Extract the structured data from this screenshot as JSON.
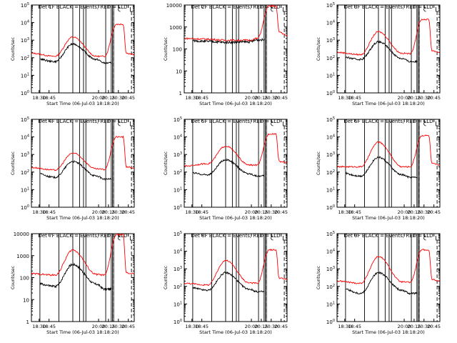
{
  "colors": {
    "events": "#000000",
    "lld": "#ff0000",
    "frame": "#000000",
    "background": "#ffffff"
  },
  "chart_data": [
    {
      "type": "line",
      "id": 1,
      "title": "Det 1F BLACK = Events, RED = LLD",
      "xlabel": "Start Time (06-Jul-03 18:18:20)",
      "ylabel": "Counts/sec",
      "yscale": "log",
      "ylim": [
        1,
        100000
      ],
      "yticks": [
        "10^0",
        "10^1",
        "10^2",
        "10^3",
        "10^4",
        "10^5"
      ],
      "xlim": [
        18.3056,
        20.9
      ],
      "xticks": [
        "18:30",
        "18:45",
        "20:00",
        "20:15",
        "20:30",
        "20:45"
      ],
      "red_profile": [
        180,
        120,
        1500,
        120,
        120,
        8000,
        8000,
        180,
        150
      ],
      "black_profile": [
        100,
        60,
        600,
        80,
        50,
        null,
        null,
        null,
        null
      ],
      "series": [
        {
          "name": "Events",
          "color": "#000000"
        },
        {
          "name": "LLD",
          "color": "#ff0000"
        }
      ]
    },
    {
      "type": "line",
      "id": 2,
      "title": "Det 2F BLACK = Events, RED = LLD",
      "xlabel": "Start Time (06-Jul-03 18:18:20)",
      "ylabel": "Counts/sec",
      "yscale": "log",
      "ylim": [
        1,
        10000
      ],
      "yticks": [
        "1",
        "10",
        "100",
        "1000",
        "10000"
      ],
      "xlim": [
        18.3056,
        20.9
      ],
      "xticks": [
        "18:30",
        "18:45",
        "20:00",
        "20:15",
        "20:30",
        "20:45"
      ],
      "red_profile": [
        300,
        280,
        250,
        250,
        300,
        9000,
        9000,
        600,
        400
      ],
      "black_profile": [
        250,
        220,
        200,
        210,
        260,
        null,
        null,
        null,
        null
      ],
      "series": [
        {
          "name": "Events",
          "color": "#000000"
        },
        {
          "name": "LLD",
          "color": "#ff0000"
        }
      ]
    },
    {
      "type": "line",
      "id": 3,
      "title": "Det 3F BLACK = Events, RED = LLD",
      "xlabel": "Start Time (06-Jul-03 18:18:20)",
      "ylabel": "Counts/sec",
      "yscale": "log",
      "ylim": [
        1,
        100000
      ],
      "yticks": [
        "10^0",
        "10^1",
        "10^2",
        "10^3",
        "10^4",
        "10^5"
      ],
      "xlim": [
        18.3056,
        20.9
      ],
      "xticks": [
        "18:30",
        "18:45",
        "20:00",
        "20:15",
        "20:30",
        "20:45"
      ],
      "red_profile": [
        200,
        150,
        3000,
        180,
        170,
        15000,
        15000,
        250,
        200
      ],
      "black_profile": [
        120,
        80,
        800,
        90,
        60,
        null,
        null,
        null,
        null
      ],
      "series": [
        {
          "name": "Events",
          "color": "#000000"
        },
        {
          "name": "LLD",
          "color": "#ff0000"
        }
      ]
    },
    {
      "type": "line",
      "id": 4,
      "title": "Det 4F BLACK = Events, RED = LLD",
      "xlabel": "Start Time (06-Jul-03 18:18:20)",
      "ylabel": "Counts/sec",
      "yscale": "log",
      "ylim": [
        1,
        100000
      ],
      "yticks": [
        "10^0",
        "10^1",
        "10^2",
        "10^3",
        "10^4",
        "10^5"
      ],
      "xlim": [
        18.3056,
        20.9
      ],
      "xticks": [
        "18:30",
        "18:45",
        "20:00",
        "20:15",
        "20:30",
        "20:45"
      ],
      "red_profile": [
        180,
        130,
        1200,
        150,
        140,
        10000,
        10000,
        200,
        170
      ],
      "black_profile": [
        100,
        50,
        400,
        60,
        40,
        null,
        null,
        null,
        null
      ],
      "series": [
        {
          "name": "Events",
          "color": "#000000"
        },
        {
          "name": "LLD",
          "color": "#ff0000"
        }
      ]
    },
    {
      "type": "line",
      "id": 5,
      "title": "Det 5F BLACK = Events, RED = LLD",
      "xlabel": "Start Time (06-Jul-03 18:18:20)",
      "ylabel": "Counts/sec",
      "yscale": "log",
      "ylim": [
        1,
        100000
      ],
      "yticks": [
        "10^0",
        "10^1",
        "10^2",
        "10^3",
        "10^4",
        "10^5"
      ],
      "xlim": [
        18.3056,
        20.9
      ],
      "xticks": [
        "18:30",
        "18:45",
        "20:00",
        "20:15",
        "20:30",
        "20:45"
      ],
      "red_profile": [
        220,
        300,
        3000,
        250,
        250,
        15000,
        15000,
        400,
        350
      ],
      "black_profile": [
        100,
        70,
        500,
        80,
        60,
        null,
        null,
        null,
        null
      ],
      "series": [
        {
          "name": "Events",
          "color": "#000000"
        },
        {
          "name": "LLD",
          "color": "#ff0000"
        }
      ]
    },
    {
      "type": "line",
      "id": 6,
      "title": "Det 6F BLACK = Events, RED = LLD",
      "xlabel": "Start Time (06-Jul-03 18:18:20)",
      "ylabel": "Counts/sec",
      "yscale": "log",
      "ylim": [
        1,
        100000
      ],
      "yticks": [
        "10^0",
        "10^1",
        "10^2",
        "10^3",
        "10^4",
        "10^5"
      ],
      "xlim": [
        18.3056,
        20.9
      ],
      "xticks": [
        "18:30",
        "18:45",
        "20:00",
        "20:15",
        "20:30",
        "20:45"
      ],
      "red_profile": [
        200,
        200,
        5000,
        200,
        200,
        12000,
        12000,
        300,
        250
      ],
      "black_profile": [
        100,
        60,
        700,
        70,
        50,
        null,
        null,
        null,
        null
      ],
      "series": [
        {
          "name": "Events",
          "color": "#000000"
        },
        {
          "name": "LLD",
          "color": "#ff0000"
        }
      ]
    },
    {
      "type": "line",
      "id": 7,
      "title": "Det 7F BLACK = Events, RED = LLD",
      "xlabel": "Start Time (06-Jul-03 18:18:20)",
      "ylabel": "Counts/sec",
      "yscale": "log",
      "ylim": [
        1,
        10000
      ],
      "yticks": [
        "1",
        "10",
        "100",
        "1000",
        "10000"
      ],
      "xlim": [
        18.3056,
        20.9
      ],
      "xticks": [
        "18:30",
        "18:45",
        "20:00",
        "20:15",
        "20:30",
        "20:45"
      ],
      "red_profile": [
        150,
        130,
        1800,
        140,
        130,
        9000,
        9000,
        160,
        150
      ],
      "black_profile": [
        60,
        40,
        400,
        50,
        30,
        null,
        null,
        null,
        null
      ],
      "series": [
        {
          "name": "Events",
          "color": "#000000"
        },
        {
          "name": "LLD",
          "color": "#ff0000"
        }
      ]
    },
    {
      "type": "line",
      "id": 8,
      "title": "Det 8F BLACK = Events, RED = LLD",
      "xlabel": "Start Time (06-Jul-03 18:18:20)",
      "ylabel": "Counts/sec",
      "yscale": "log",
      "ylim": [
        1,
        100000
      ],
      "yticks": [
        "10^0",
        "10^1",
        "10^2",
        "10^3",
        "10^4",
        "10^5"
      ],
      "xlim": [
        18.3056,
        20.9
      ],
      "xticks": [
        "18:30",
        "18:45",
        "20:00",
        "20:15",
        "20:30",
        "20:45"
      ],
      "red_profile": [
        150,
        120,
        3000,
        160,
        150,
        12000,
        12000,
        300,
        250
      ],
      "black_profile": [
        100,
        60,
        600,
        70,
        50,
        null,
        null,
        null,
        null
      ],
      "series": [
        {
          "name": "Events",
          "color": "#000000"
        },
        {
          "name": "LLD",
          "color": "#ff0000"
        }
      ]
    },
    {
      "type": "line",
      "id": 9,
      "title": "Det 9F BLACK = Events, RED = LLD",
      "xlabel": "Start Time (06-Jul-03 18:18:20)",
      "ylabel": "Counts/sec",
      "yscale": "log",
      "ylim": [
        1,
        100000
      ],
      "yticks": [
        "10^0",
        "10^1",
        "10^2",
        "10^3",
        "10^4",
        "10^5"
      ],
      "xlim": [
        18.3056,
        20.9
      ],
      "xticks": [
        "18:30",
        "18:45",
        "20:00",
        "20:15",
        "20:30",
        "20:45"
      ],
      "red_profile": [
        200,
        150,
        5000,
        180,
        170,
        12000,
        12000,
        250,
        200
      ],
      "black_profile": [
        100,
        40,
        600,
        60,
        40,
        null,
        null,
        null,
        null
      ],
      "series": [
        {
          "name": "Events",
          "color": "#000000"
        },
        {
          "name": "LLD",
          "color": "#ff0000"
        }
      ]
    }
  ]
}
